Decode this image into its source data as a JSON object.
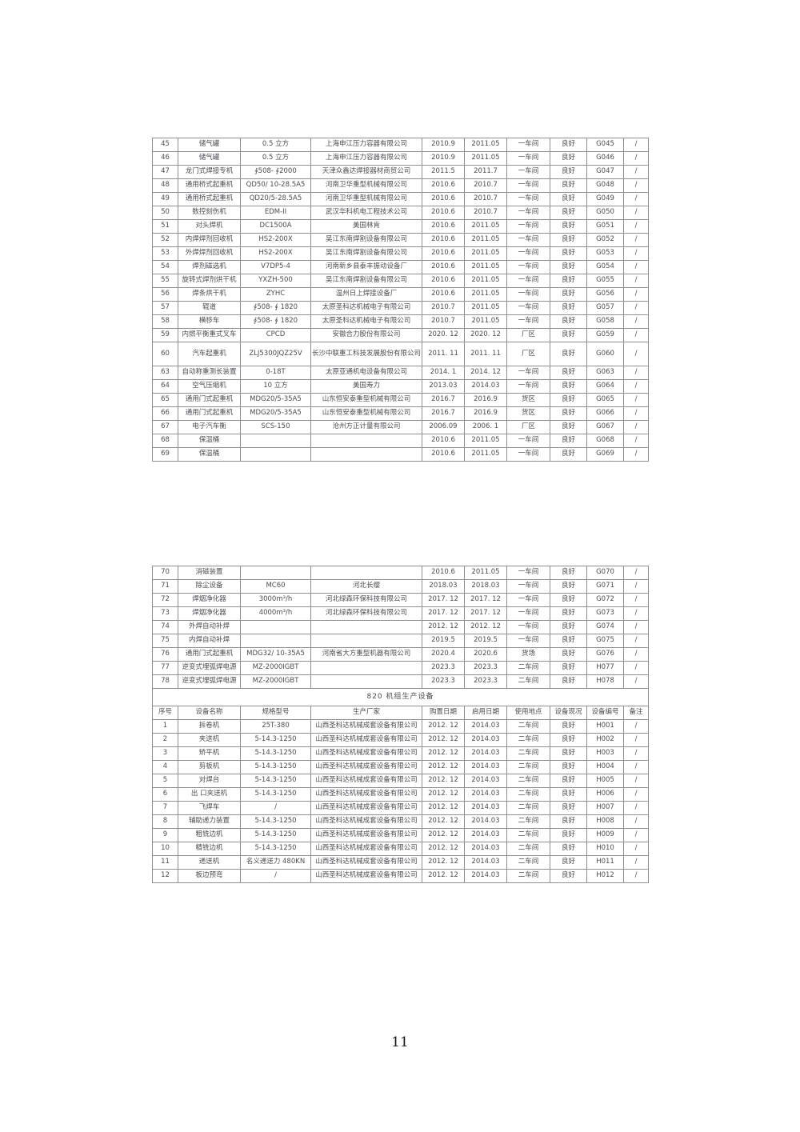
{
  "page": {
    "number": "11"
  },
  "table2_section_title": "820 机组生产设备",
  "table2_headers": [
    "序号",
    "设备名称",
    "规格型号",
    "生产厂家",
    "购置日期",
    "启用日期",
    "使用地点",
    "设备现况",
    "设备编号",
    "备注"
  ],
  "table1": {
    "rows": [
      {
        "no": "45",
        "name": "储气罐",
        "spec": "0.5 立方",
        "maker": "上海申江压力容器有限公司",
        "buy": "2010.9",
        "start": "2011.05",
        "loc": "一车间",
        "cond": "良好",
        "code": "G045",
        "note": "/"
      },
      {
        "no": "46",
        "name": "储气罐",
        "spec": "0.5 立方",
        "maker": "上海申江压力容器有限公司",
        "buy": "2010.9",
        "start": "2011.05",
        "loc": "一车间",
        "cond": "良好",
        "code": "G046",
        "note": "/"
      },
      {
        "no": "47",
        "name": "龙门式焊接专机",
        "spec": "∮508- ∮2000",
        "maker": "天津众鑫达焊接器材商贸公司",
        "buy": "2011.5",
        "start": "2011.7",
        "loc": "一车间",
        "cond": "良好",
        "code": "G047",
        "note": "/"
      },
      {
        "no": "48",
        "name": "通用桥式起重机",
        "spec": "QD50/ 10-28.5A5",
        "maker": "河南卫华重型机械有限公司",
        "buy": "2010.6",
        "start": "2010.7",
        "loc": "一车间",
        "cond": "良好",
        "code": "G048",
        "note": "/"
      },
      {
        "no": "49",
        "name": "通用桥式起重机",
        "spec": "QD20/5-28.5A5",
        "maker": "河南卫华重型机械有限公司",
        "buy": "2010.6",
        "start": "2010.7",
        "loc": "一车间",
        "cond": "良好",
        "code": "G049",
        "note": "/"
      },
      {
        "no": "50",
        "name": "数控刻伤机",
        "spec": "EDM-II",
        "maker": "武汉华科机电工程技术公司",
        "buy": "2010.6",
        "start": "2010.7",
        "loc": "一车间",
        "cond": "良好",
        "code": "G050",
        "note": "/"
      },
      {
        "no": "51",
        "name": "对头焊机",
        "spec": "DC1500A",
        "maker": "美国林肯",
        "buy": "2010.6",
        "start": "2011.05",
        "loc": "一车间",
        "cond": "良好",
        "code": "G051",
        "note": "/"
      },
      {
        "no": "52",
        "name": "内焊焊剂回收机",
        "spec": "HS2-200X",
        "maker": "吴江东南焊割设备有限公司",
        "buy": "2010.6",
        "start": "2011.05",
        "loc": "一车间",
        "cond": "良好",
        "code": "G052",
        "note": "/"
      },
      {
        "no": "53",
        "name": "外焊焊剂回收机",
        "spec": "HS2-200X",
        "maker": "吴江东南焊割设备有限公司",
        "buy": "2010.6",
        "start": "2011.05",
        "loc": "一车间",
        "cond": "良好",
        "code": "G053",
        "note": "/"
      },
      {
        "no": "54",
        "name": "焊剂磁选机",
        "spec": "V7DP5-4",
        "maker": "河南新乡县泰丰振动设备厂",
        "buy": "2010.6",
        "start": "2011.05",
        "loc": "一车间",
        "cond": "良好",
        "code": "G054",
        "note": "/"
      },
      {
        "no": "55",
        "name": "旋转式焊剂烘干机",
        "spec": "YXZH-500",
        "maker": "吴江东南焊割设备有限公司",
        "buy": "2010.6",
        "start": "2011.05",
        "loc": "一车间",
        "cond": "良好",
        "code": "G055",
        "note": "/"
      },
      {
        "no": "56",
        "name": "焊条烘干机",
        "spec": "ZYHC",
        "maker": "温州日上焊接设备厂",
        "buy": "2010.6",
        "start": "2011.05",
        "loc": "一车间",
        "cond": "良好",
        "code": "G056",
        "note": "/"
      },
      {
        "no": "57",
        "name": "辊道",
        "spec": "∮508- ∮ 1820",
        "maker": "太原圣科达机械电子有限公司",
        "buy": "2010.7",
        "start": "2011.05",
        "loc": "一车间",
        "cond": "良好",
        "code": "G057",
        "note": "/"
      },
      {
        "no": "58",
        "name": "横移车",
        "spec": "∮508- ∮ 1820",
        "maker": "太原圣科达机械电子有限公司",
        "buy": "2010.7",
        "start": "2011.05",
        "loc": "一车间",
        "cond": "良好",
        "code": "G058",
        "note": "/"
      },
      {
        "no": "59",
        "name": "内燃平衡重式叉车",
        "spec": "CPCD",
        "maker": "安徽合力股份有限公司",
        "buy": "2020. 12",
        "start": "2020. 12",
        "loc": "厂区",
        "cond": "良好",
        "code": "G059",
        "note": "/"
      },
      {
        "no": "60",
        "name": "汽车起重机",
        "spec": "ZLJ5300JQZ25V",
        "maker": "长沙中联重工科技发展股份有限公司",
        "buy": "2011. 11",
        "start": "2011. 11",
        "loc": "厂区",
        "cond": "良好",
        "code": "G060",
        "note": "/",
        "tall": true
      },
      {
        "no": "63",
        "name": "自动称重测长装置",
        "spec": "0-18T",
        "maker": "太原亚通机电设备有限公司",
        "buy": "2014. 1",
        "start": "2014. 12",
        "loc": "一车间",
        "cond": "良好",
        "code": "G063",
        "note": "/"
      },
      {
        "no": "64",
        "name": "空气压缩机",
        "spec": "10 立方",
        "maker": "美国寿力",
        "buy": "2013.03",
        "start": "2014.03",
        "loc": "一车间",
        "cond": "良好",
        "code": "G064",
        "note": "/"
      },
      {
        "no": "65",
        "name": "通用门式起重机",
        "spec": "MDG20/5-35A5",
        "maker": "山东恒安泰重型机械有限公司",
        "buy": "2016.7",
        "start": "2016.9",
        "loc": "货区",
        "cond": "良好",
        "code": "G065",
        "note": "/"
      },
      {
        "no": "66",
        "name": "通用门式起重机",
        "spec": "MDG20/5-35A5",
        "maker": "山东恒安泰重型机械有限公司",
        "buy": "2016.7",
        "start": "2016.9",
        "loc": "货区",
        "cond": "良好",
        "code": "G066",
        "note": "/"
      },
      {
        "no": "67",
        "name": "电子汽车衡",
        "spec": "SCS-150",
        "maker": "沧州方正计量有限公司",
        "buy": "2006.09",
        "start": "2006. 1",
        "loc": "厂区",
        "cond": "良好",
        "code": "G067",
        "note": "/"
      },
      {
        "no": "68",
        "name": "保温桶",
        "spec": "",
        "maker": "",
        "buy": "2010.6",
        "start": "2011.05",
        "loc": "一车间",
        "cond": "良好",
        "code": "G068",
        "note": "/"
      },
      {
        "no": "69",
        "name": "保温桶",
        "spec": "",
        "maker": "",
        "buy": "2010.6",
        "start": "2011.05",
        "loc": "一车间",
        "cond": "良好",
        "code": "G069",
        "note": "/"
      }
    ]
  },
  "table2_top": {
    "rows": [
      {
        "no": "70",
        "name": "消磁装置",
        "spec": "",
        "maker": "",
        "buy": "2010.6",
        "start": "2011.05",
        "loc": "一车间",
        "cond": "良好",
        "code": "G070",
        "note": "/"
      },
      {
        "no": "71",
        "name": "除尘设备",
        "spec": "MC60",
        "maker": "河北长缨",
        "buy": "2018.03",
        "start": "2018.03",
        "loc": "一车间",
        "cond": "良好",
        "code": "G071",
        "note": "/"
      },
      {
        "no": "72",
        "name": "焊烟净化器",
        "spec": "3000m³/h",
        "maker": "河北绿森环保科技有限公司",
        "buy": "2017. 12",
        "start": "2017. 12",
        "loc": "一车间",
        "cond": "良好",
        "code": "G072",
        "note": "/"
      },
      {
        "no": "73",
        "name": "焊烟净化器",
        "spec": "4000m³/h",
        "maker": "河北绿森环保科技有限公司",
        "buy": "2017. 12",
        "start": "2017. 12",
        "loc": "一车间",
        "cond": "良好",
        "code": "G073",
        "note": "/"
      },
      {
        "no": "74",
        "name": "外焊自动补焊",
        "spec": "",
        "maker": "",
        "buy": "2012. 12",
        "start": "2012. 12",
        "loc": "一车间",
        "cond": "良好",
        "code": "G074",
        "note": "/"
      },
      {
        "no": "75",
        "name": "内焊自动补焊",
        "spec": "",
        "maker": "",
        "buy": "2019.5",
        "start": "2019.5",
        "loc": "一车间",
        "cond": "良好",
        "code": "G075",
        "note": "/"
      },
      {
        "no": "76",
        "name": "通用门式起重机",
        "spec": "MDG32/ 10-35A5",
        "maker": "河南省大方重型机器有限公司",
        "buy": "2020.4",
        "start": "2020.6",
        "loc": "货场",
        "cond": "良好",
        "code": "G076",
        "note": "/"
      },
      {
        "no": "77",
        "name": "逆变式埋弧焊电源",
        "spec": "MZ-2000IGBT",
        "maker": "",
        "buy": "2023.3",
        "start": "2023.3",
        "loc": "二车间",
        "cond": "良好",
        "code": "H077",
        "note": "/"
      },
      {
        "no": "78",
        "name": "逆变式埋弧焊电源",
        "spec": "MZ-2000IGBT",
        "maker": "",
        "buy": "2023.3",
        "start": "2023.3",
        "loc": "二车间",
        "cond": "良好",
        "code": "H078",
        "note": "/"
      }
    ]
  },
  "table2_bottom": {
    "rows": [
      {
        "no": "1",
        "name": "拆卷机",
        "spec": "25T-380",
        "maker": "山西圣科达机械成套设备有限公司",
        "buy": "2012. 12",
        "start": "2014.03",
        "loc": "二车间",
        "cond": "良好",
        "code": "H001",
        "note": "/"
      },
      {
        "no": "2",
        "name": "夹送机",
        "spec": "5-14.3-1250",
        "maker": "山西圣科达机械成套设备有限公司",
        "buy": "2012. 12",
        "start": "2014.03",
        "loc": "二车间",
        "cond": "良好",
        "code": "H002",
        "note": "/"
      },
      {
        "no": "3",
        "name": "矫平机",
        "spec": "5-14.3-1250",
        "maker": "山西圣科达机械成套设备有限公司",
        "buy": "2012. 12",
        "start": "2014.03",
        "loc": "二车间",
        "cond": "良好",
        "code": "H003",
        "note": "/"
      },
      {
        "no": "4",
        "name": "剪板机",
        "spec": "5-14.3-1250",
        "maker": "山西圣科达机械成套设备有限公司",
        "buy": "2012. 12",
        "start": "2014.03",
        "loc": "二车间",
        "cond": "良好",
        "code": "H004",
        "note": "/"
      },
      {
        "no": "5",
        "name": "对焊台",
        "spec": "5-14.3-1250",
        "maker": "山西圣科达机械成套设备有限公司",
        "buy": "2012. 12",
        "start": "2014.03",
        "loc": "二车间",
        "cond": "良好",
        "code": "H005",
        "note": "/"
      },
      {
        "no": "6",
        "name": "出 口夹送机",
        "spec": "5-14.3-1250",
        "maker": "山西圣科达机械成套设备有限公司",
        "buy": "2012. 12",
        "start": "2014.03",
        "loc": "二车间",
        "cond": "良好",
        "code": "H006",
        "note": "/"
      },
      {
        "no": "7",
        "name": "飞焊车",
        "spec": "/",
        "maker": "山西圣科达机械成套设备有限公司",
        "buy": "2012. 12",
        "start": "2014.03",
        "loc": "二车间",
        "cond": "良好",
        "code": "H007",
        "note": "/"
      },
      {
        "no": "8",
        "name": "辅助递力装置",
        "spec": "5-14.3-1250",
        "maker": "山西圣科达机械成套设备有限公司",
        "buy": "2012. 12",
        "start": "2014.03",
        "loc": "二车间",
        "cond": "良好",
        "code": "H008",
        "note": "/"
      },
      {
        "no": "9",
        "name": "粗铣边机",
        "spec": "5-14.3-1250",
        "maker": "山西圣科达机械成套设备有限公司",
        "buy": "2012. 12",
        "start": "2014.03",
        "loc": "二车间",
        "cond": "良好",
        "code": "H009",
        "note": "/"
      },
      {
        "no": "10",
        "name": "精铣边机",
        "spec": "5-14.3-1250",
        "maker": "山西圣科达机械成套设备有限公司",
        "buy": "2012. 12",
        "start": "2014.03",
        "loc": "二车间",
        "cond": "良好",
        "code": "H010",
        "note": "/"
      },
      {
        "no": "11",
        "name": "递送机",
        "spec": "名义递送力 480KN",
        "maker": "山西圣科达机械成套设备有限公司",
        "buy": "2012. 12",
        "start": "2014.03",
        "loc": "二车间",
        "cond": "良好",
        "code": "H011",
        "note": "/"
      },
      {
        "no": "12",
        "name": "板边预弯",
        "spec": "/",
        "maker": "山西圣科达机械成套设备有限公司",
        "buy": "2012. 12",
        "start": "2014.03",
        "loc": "二车间",
        "cond": "良好",
        "code": "H012",
        "note": "/"
      }
    ]
  }
}
